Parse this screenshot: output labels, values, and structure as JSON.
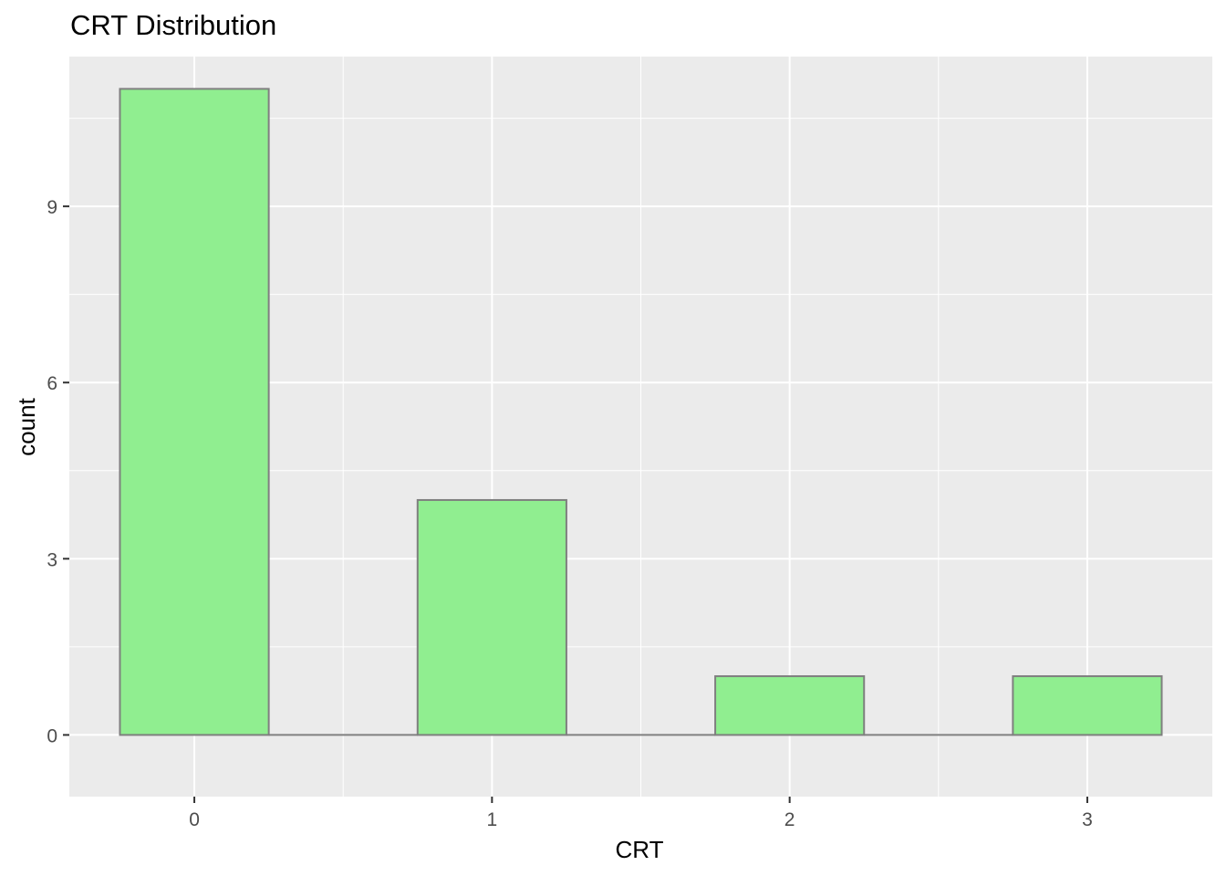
{
  "chart_data": {
    "type": "bar",
    "title": "CRT Distribution",
    "xlabel": "CRT",
    "ylabel": "count",
    "categories": [
      "0",
      "1",
      "2",
      "3"
    ],
    "values": [
      11,
      4,
      1,
      1
    ],
    "ylim": [
      -1.05,
      11.55
    ],
    "xlim": [
      -0.42,
      3.42
    ],
    "bar_width": 0.5,
    "y_ticks": [
      0,
      3,
      6,
      9
    ],
    "x_ticks": [
      0,
      1,
      2,
      3
    ],
    "grid": true,
    "colors": {
      "bar_fill": "#90EE90",
      "bar_stroke": "#7F7F7F",
      "panel_bg": "#EBEBEB",
      "grid_major": "#FFFFFF",
      "tick_label": "#4D4D4D"
    }
  }
}
